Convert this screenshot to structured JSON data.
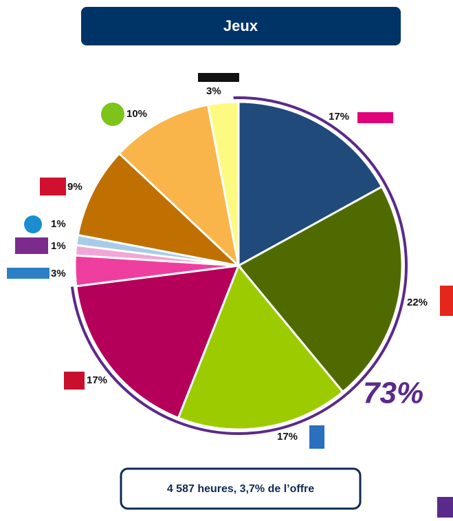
{
  "chart_data": {
    "type": "pie",
    "title": "Jeux",
    "values": [
      17,
      22,
      17,
      17,
      3,
      1,
      1,
      9,
      10,
      3
    ],
    "value_labels": [
      "17%",
      "22%",
      "17%",
      "17%",
      "3%",
      "1%",
      "1%",
      "9%",
      "10%",
      "3%"
    ],
    "colors": [
      "#1f4a7a",
      "#4f6b00",
      "#9ccc00",
      "#b5005a",
      "#ee3fa0",
      "#f2a6d6",
      "#a8cce8",
      "#c07000",
      "#f9b54a",
      "#fdfa82"
    ],
    "annotation": "73%",
    "footer": "4 587 heures, 3,7% de l’offre"
  }
}
